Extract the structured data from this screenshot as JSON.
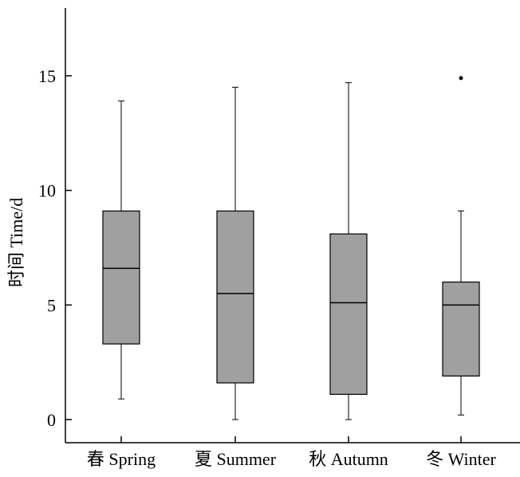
{
  "chart_data": {
    "type": "box",
    "title": "",
    "xlabel": "",
    "ylabel": "时间 Time/d",
    "ylim": [
      -1,
      18
    ],
    "yticks": [
      0,
      5,
      10,
      15
    ],
    "grid": false,
    "box_color": "#a0a0a0",
    "categories": [
      "春 Spring",
      "夏 Summer",
      "秋 Autumn",
      "冬 Winter"
    ],
    "boxes": [
      {
        "category": "春 Spring",
        "min": 0.9,
        "q1": 3.3,
        "median": 6.6,
        "q3": 9.1,
        "max": 13.9,
        "outliers": []
      },
      {
        "category": "夏 Summer",
        "min": 0.0,
        "q1": 1.6,
        "median": 5.5,
        "q3": 9.1,
        "max": 14.5,
        "outliers": []
      },
      {
        "category": "秋 Autumn",
        "min": 0.0,
        "q1": 1.1,
        "median": 5.1,
        "q3": 8.1,
        "max": 14.7,
        "outliers": []
      },
      {
        "category": "冬 Winter",
        "min": 0.2,
        "q1": 1.9,
        "median": 5.0,
        "q3": 6.0,
        "max": 9.1,
        "outliers": [
          14.9
        ]
      }
    ]
  }
}
